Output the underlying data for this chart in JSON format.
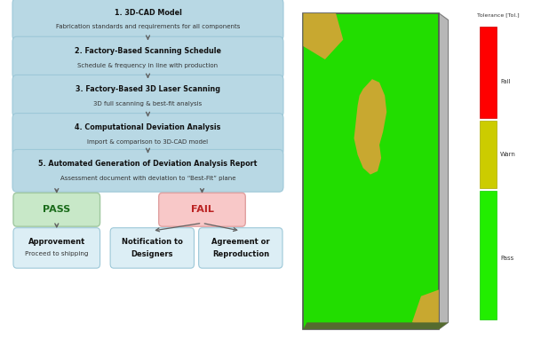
{
  "workflow_steps": [
    {
      "title": "1. 3D-CAD Model",
      "subtitle": "Fabrication standards and requirements for all components"
    },
    {
      "title": "2. Factory-Based Scanning Schedule",
      "subtitle": "Schedule & frequency in line with production"
    },
    {
      "title": "3. Factory-Based 3D Laser Scanning",
      "subtitle": "3D full scanning & best-fit analysis"
    },
    {
      "title": "4. Computational Deviation Analysis",
      "subtitle": "Import & comparison to 3D-CAD model"
    },
    {
      "title": "5. Automated Generation of Deviation Analysis Report",
      "subtitle": "Assessment document with deviation to “Best-Fit” plane"
    }
  ],
  "box_color": "#b8d8e4",
  "box_edge_color": "#9dc8d8",
  "pass_color": "#c8e8c8",
  "pass_edge_color": "#a0c8a0",
  "fail_color": "#f8c8c8",
  "fail_edge_color": "#e0a0a0",
  "outcome_color": "#dceef5",
  "outcome_edge_color": "#9dc8d8",
  "arrow_color": "#606060",
  "bg_color": "#ffffff",
  "glass_green": "#22dd00",
  "glass_tan": "#c8a830",
  "glass_border": "#555555",
  "glass_shadow": "#888888",
  "legend_red": "#ff0000",
  "legend_yellow": "#cccc00",
  "legend_green": "#22ee00",
  "legend_title": "Tolerance [Tol.]",
  "legend_labels": [
    "Fail",
    "Warn",
    "Pass"
  ]
}
